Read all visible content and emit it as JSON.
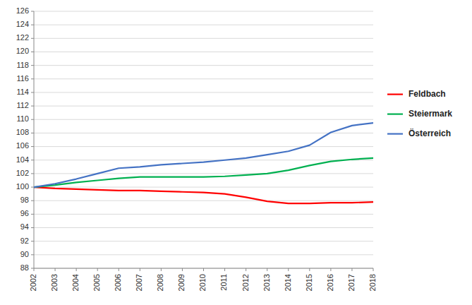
{
  "chart_data": {
    "type": "line",
    "x": [
      2002,
      2003,
      2004,
      2005,
      2006,
      2007,
      2008,
      2009,
      2010,
      2011,
      2012,
      2013,
      2014,
      2015,
      2016,
      2017,
      2018
    ],
    "series": [
      {
        "name": "Feldbach",
        "color": "#ff0000",
        "values": [
          100.0,
          99.8,
          99.7,
          99.6,
          99.5,
          99.5,
          99.4,
          99.3,
          99.2,
          99.0,
          98.5,
          97.9,
          97.6,
          97.6,
          97.7,
          97.7,
          97.8
        ]
      },
      {
        "name": "Steiermark",
        "color": "#00b050",
        "values": [
          100.0,
          100.3,
          100.7,
          101.0,
          101.3,
          101.5,
          101.5,
          101.5,
          101.5,
          101.6,
          101.8,
          102.0,
          102.5,
          103.2,
          103.8,
          104.1,
          104.3
        ]
      },
      {
        "name": "Österreich",
        "color": "#4472c4",
        "values": [
          100.0,
          100.5,
          101.2,
          102.0,
          102.8,
          103.0,
          103.3,
          103.5,
          103.7,
          104.0,
          104.3,
          104.8,
          105.3,
          106.2,
          108.1,
          109.1,
          109.5
        ]
      }
    ],
    "xlim": [
      2002,
      2018
    ],
    "xticks": [
      2002,
      2003,
      2004,
      2005,
      2006,
      2007,
      2008,
      2009,
      2010,
      2011,
      2012,
      2013,
      2014,
      2015,
      2016,
      2017,
      2018
    ],
    "ylim": [
      88,
      126
    ],
    "yticks": [
      88,
      90,
      92,
      94,
      96,
      98,
      100,
      102,
      104,
      106,
      108,
      110,
      112,
      114,
      116,
      118,
      120,
      122,
      124,
      126
    ],
    "grid": true,
    "legend": "right"
  }
}
